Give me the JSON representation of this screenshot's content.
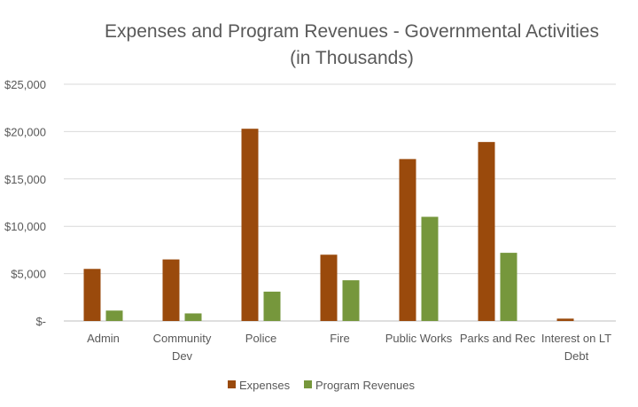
{
  "chart_data": {
    "type": "bar",
    "title_lines": [
      "Expenses and Program Revenues - Governmental Activities",
      "(in Thousands)"
    ],
    "categories": [
      [
        "Admin"
      ],
      [
        "Community",
        "Dev"
      ],
      [
        "Police"
      ],
      [
        "Fire"
      ],
      [
        "Public Works"
      ],
      [
        "Parks and Rec"
      ],
      [
        "Interest on LT",
        "Debt"
      ]
    ],
    "series": [
      {
        "name": "Expenses",
        "color": "#9A4A0C",
        "values": [
          5500,
          6500,
          20300,
          7000,
          17100,
          18900,
          250
        ]
      },
      {
        "name": "Program Revenues",
        "color": "#76973C",
        "values": [
          1100,
          800,
          3100,
          4300,
          11000,
          7200,
          0
        ]
      }
    ],
    "ylim": [
      0,
      25000
    ],
    "yticks": [
      0,
      5000,
      10000,
      15000,
      20000,
      25000
    ],
    "ytick_labels": [
      "$-",
      "$5,000",
      "$10,000",
      "$15,000",
      "$20,000",
      "$25,000"
    ],
    "xlabel": "",
    "ylabel": "",
    "grid": true,
    "legend": "bottom-center"
  }
}
